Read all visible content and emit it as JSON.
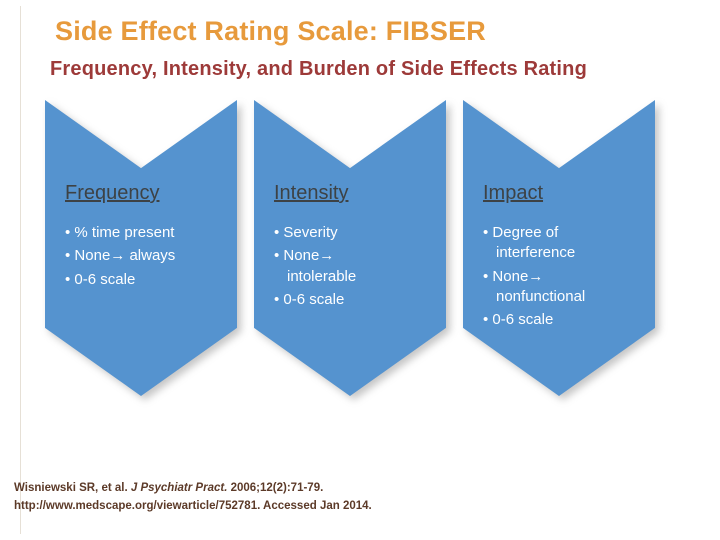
{
  "title": "Side Effect Rating Scale: FIBSER",
  "subtitle": "Frequency, Intensity, and Burden of Side Effects Rating",
  "columns": [
    {
      "header": "Frequency",
      "bullets": [
        "% time present",
        "None→ always",
        "0-6 scale"
      ]
    },
    {
      "header": "Intensity",
      "bullets": [
        "Severity",
        "None→ intolerable",
        "0-6 scale"
      ]
    },
    {
      "header": "Impact",
      "bullets": [
        "Degree of interference",
        "None→ nonfunctional",
        "0-6 scale"
      ]
    }
  ],
  "citation": {
    "authors": "Wisniewski SR, et al. ",
    "journal_italic": "J Psychiatr Pract.",
    "detail": " 2006;12(2):71-79.",
    "url_line": "http://www.medscape.org/viewarticle/752781. Accessed Jan 2014."
  },
  "colors": {
    "title": "#E79A3C",
    "subtitle": "#9D3A39",
    "chevron_fill": "#5593CF",
    "column_header_text": "#3D4245",
    "bullet_text": "#FFFFFF",
    "citation_text": "#5C3A28"
  }
}
